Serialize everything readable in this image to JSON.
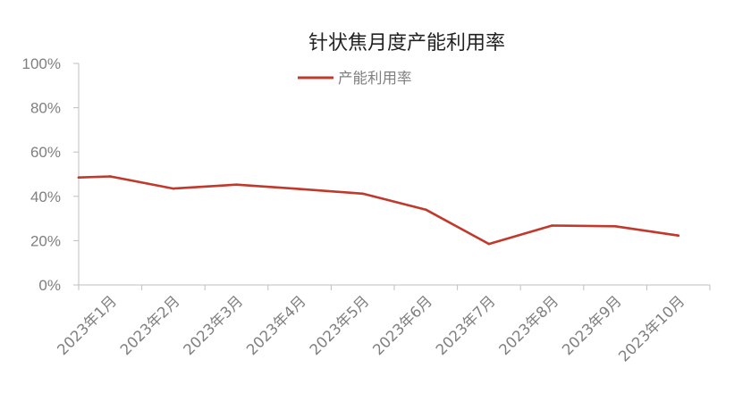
{
  "chart_data": {
    "type": "line",
    "title": "针状焦月度产能利用率",
    "xlabel": "",
    "ylabel": "",
    "ylim": [
      0,
      100
    ],
    "yticks": [
      "0%",
      "20%",
      "40%",
      "60%",
      "80%",
      "100%"
    ],
    "categories": [
      "2023年1月",
      "2023年2月",
      "2023年3月",
      "2023年4月",
      "2023年5月",
      "2023年6月",
      "2023年7月",
      "2023年8月",
      "2023年9月",
      "2023年10月"
    ],
    "series": [
      {
        "name": "产能利用率",
        "color": "#c0392b",
        "x": [
          0,
          0.5,
          1.5,
          2.5,
          3.5,
          4.5,
          5.5,
          6.5,
          7.5,
          8.5,
          9.5
        ],
        "values": [
          48.5,
          49,
          43.5,
          45.3,
          43.3,
          41.2,
          34,
          18.5,
          26.8,
          26.5,
          22.3
        ]
      }
    ],
    "legend": "top-center",
    "grid": false
  }
}
